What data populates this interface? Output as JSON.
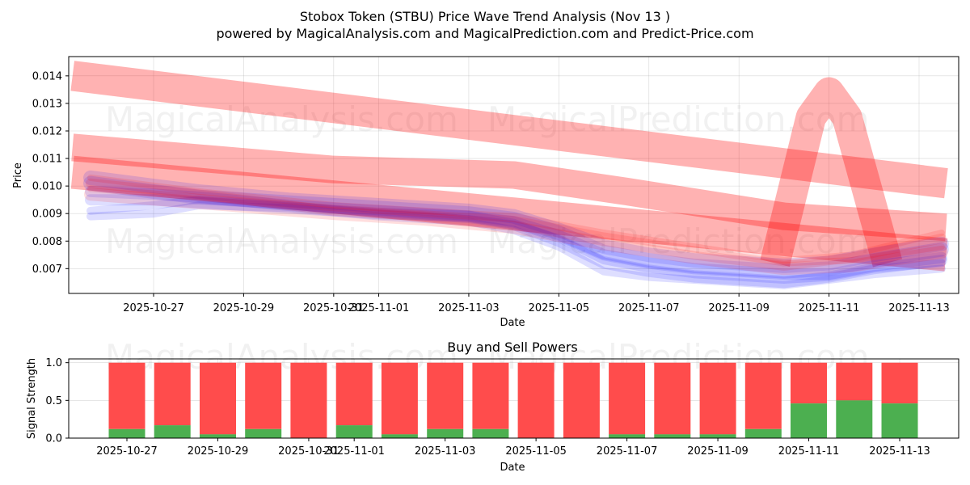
{
  "figure": {
    "title": "Stobox Token (STBU) Price Wave Trend Analysis (Nov 13 )",
    "subtitle": "powered by MagicalAnalysis.com and MagicalPrediction.com and Predict-Price.com",
    "watermarks": [
      "MagicalAnalysis.com",
      "MagicalPrediction.com"
    ]
  },
  "colors": {
    "sell": "#ff4c4c",
    "buy": "#4caf50",
    "price_band": "#ff0000",
    "wave_band": "#0000ff"
  },
  "chart_data": [
    {
      "type": "area",
      "title": "",
      "xlabel": "Date",
      "ylabel": "Price",
      "grid": true,
      "x_range": [
        "2025-10-25",
        "2025-11-13.8"
      ],
      "ylim": [
        0.0061,
        0.0147
      ],
      "xticks": [
        "2025-10-27",
        "2025-10-29",
        "2025-10-31",
        "2025-11-01",
        "2025-11-03",
        "2025-11-05",
        "2025-11-07",
        "2025-11-09",
        "2025-11-11",
        "2025-11-13"
      ],
      "yticks": [
        "0.007",
        "0.008",
        "0.009",
        "0.010",
        "0.011",
        "0.012",
        "0.013",
        "0.014"
      ],
      "red_bands": [
        {
          "name": "upper channel",
          "x": [
            "2025-10-25.2",
            "2025-11-13.6"
          ],
          "center": [
            0.014,
            0.0101
          ],
          "width": 0.0011
        },
        {
          "name": "middle channel",
          "x": [
            "2025-10-25.2",
            "2025-10-31",
            "2025-11-04",
            "2025-11-06.5",
            "2025-11-10",
            "2025-11-13.6"
          ],
          "center": [
            0.0114,
            0.0106,
            0.0104,
            0.0098,
            0.0089,
            0.0085
          ],
          "width": 0.001
        },
        {
          "name": "lower channel",
          "x": [
            "2025-10-25.2",
            "2025-11-13.6"
          ],
          "center": [
            0.0105,
            0.0075
          ],
          "width": 0.0012
        },
        {
          "name": "spike",
          "x": [
            "2025-11-09.8",
            "2025-11-10.6",
            "2025-11-11",
            "2025-11-11.4",
            "2025-11-12.3"
          ],
          "center": [
            0.0072,
            0.0125,
            0.0134,
            0.0125,
            0.0072
          ],
          "width": 0.0011
        }
      ],
      "red_lines": {
        "x": [
          "2025-10-25.6",
          "2025-10-28",
          "2025-10-31",
          "2025-11-02",
          "2025-11-04",
          "2025-11-06",
          "2025-11-08",
          "2025-11-10",
          "2025-11-11.5",
          "2025-11-13.5"
        ],
        "series": [
          [
            0.0099,
            0.0096,
            0.0092,
            0.009,
            0.0088,
            0.0082,
            0.0077,
            0.0072,
            0.0073,
            0.0078
          ],
          [
            0.0101,
            0.0097,
            0.0091,
            0.0089,
            0.0086,
            0.008,
            0.0075,
            0.0071,
            0.0074,
            0.0081
          ],
          [
            0.0097,
            0.0094,
            0.009,
            0.0088,
            0.0085,
            0.0079,
            0.0074,
            0.007,
            0.0071,
            0.0076
          ],
          [
            0.0103,
            0.0098,
            0.0093,
            0.0091,
            0.0089,
            0.0083,
            0.0078,
            0.0073,
            0.0075,
            0.0083
          ]
        ]
      },
      "blue_lines": {
        "x": [
          "2025-10-25.6",
          "2025-10-27",
          "2025-10-28",
          "2025-10-30",
          "2025-11-01",
          "2025-11-03",
          "2025-11-04",
          "2025-11-05",
          "2025-11-06",
          "2025-11-07",
          "2025-11-08",
          "2025-11-09",
          "2025-11-10",
          "2025-11-11",
          "2025-11-12",
          "2025-11-13.5"
        ],
        "series": [
          [
            0.0091,
            0.0093,
            0.0095,
            0.0093,
            0.009,
            0.0088,
            0.0086,
            0.0081,
            0.0073,
            0.007,
            0.0068,
            0.0067,
            0.0066,
            0.0067,
            0.007,
            0.0072
          ],
          [
            0.0098,
            0.0097,
            0.0096,
            0.0093,
            0.0091,
            0.0089,
            0.0087,
            0.0082,
            0.0075,
            0.0072,
            0.007,
            0.0069,
            0.0068,
            0.0068,
            0.0071,
            0.0074
          ],
          [
            0.0101,
            0.0098,
            0.0096,
            0.0094,
            0.0092,
            0.009,
            0.0088,
            0.0083,
            0.0076,
            0.0073,
            0.0071,
            0.007,
            0.0069,
            0.007,
            0.0073,
            0.0077
          ],
          [
            0.0089,
            0.009,
            0.0093,
            0.0092,
            0.0089,
            0.0087,
            0.0084,
            0.0078,
            0.0069,
            0.0067,
            0.0066,
            0.0065,
            0.0064,
            0.0066,
            0.0068,
            0.007
          ],
          [
            0.0095,
            0.0095,
            0.0094,
            0.0092,
            0.009,
            0.0089,
            0.0086,
            0.008,
            0.0072,
            0.0069,
            0.0067,
            0.0066,
            0.0065,
            0.0067,
            0.007,
            0.0073
          ],
          [
            0.0103,
            0.01,
            0.0098,
            0.0095,
            0.0093,
            0.0091,
            0.0089,
            0.0084,
            0.0078,
            0.0075,
            0.0073,
            0.0072,
            0.0071,
            0.0072,
            0.0075,
            0.0079
          ]
        ]
      }
    },
    {
      "type": "bar",
      "stacked": true,
      "title": "Buy and Sell Powers",
      "xlabel": "Date",
      "ylabel": "Signal Strength",
      "grid": true,
      "ylim": [
        0,
        1.05
      ],
      "yticks": [
        "0.0",
        "0.5",
        "1.0"
      ],
      "xticks": [
        "2025-10-27",
        "2025-10-29",
        "2025-10-31",
        "2025-11-01",
        "2025-11-03",
        "2025-11-05",
        "2025-11-07",
        "2025-11-09",
        "2025-11-11",
        "2025-11-13"
      ],
      "categories": [
        "2025-10-27",
        "2025-10-28",
        "2025-10-29",
        "2025-10-30",
        "2025-10-31",
        "2025-11-01",
        "2025-11-02",
        "2025-11-03",
        "2025-11-04",
        "2025-11-05",
        "2025-11-06",
        "2025-11-07",
        "2025-11-08",
        "2025-11-09",
        "2025-11-10",
        "2025-11-11",
        "2025-11-12",
        "2025-11-13"
      ],
      "series": [
        {
          "name": "Buy",
          "values": [
            0.12,
            0.17,
            0.05,
            0.12,
            0.0,
            0.17,
            0.05,
            0.12,
            0.12,
            0.0,
            0.0,
            0.05,
            0.05,
            0.05,
            0.12,
            0.46,
            0.5,
            0.46
          ]
        },
        {
          "name": "Sell",
          "values": [
            0.88,
            0.83,
            0.95,
            0.88,
            1.0,
            0.83,
            0.95,
            0.88,
            0.88,
            1.0,
            1.0,
            0.95,
            0.95,
            0.95,
            0.88,
            0.54,
            0.5,
            0.54
          ]
        }
      ]
    }
  ]
}
